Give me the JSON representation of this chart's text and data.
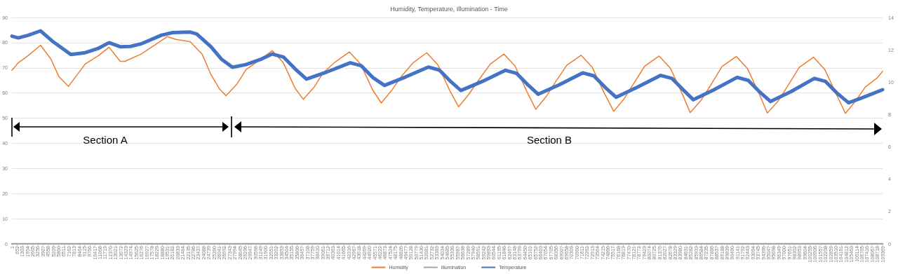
{
  "chart_data": {
    "type": "line",
    "title": "Humidity, Temperature, Illumination - Time",
    "annotations": [
      "Section A",
      "Section B"
    ],
    "xlim": [
      1,
      109369
    ],
    "xticks": [
      1,
      652,
      1303,
      1954,
      2605,
      3256,
      3907,
      4558,
      5209,
      5860,
      6511,
      7162,
      7813,
      8464,
      9115,
      9766,
      10417,
      11068,
      11719,
      12370,
      13021,
      13672,
      14323,
      14974,
      15625,
      16276,
      16927,
      17578,
      18229,
      18880,
      19531,
      20182,
      20833,
      21484,
      22135,
      22786,
      23437,
      24088,
      24739,
      25390,
      26041,
      26692,
      27343,
      27994,
      28645,
      29296,
      29947,
      30598,
      31249,
      31900,
      32551,
      33202,
      33853,
      34504,
      35155,
      35806,
      36457,
      37108,
      37759,
      38410,
      39061,
      39712,
      40363,
      41014,
      41665,
      42316,
      42967,
      43618,
      44269,
      44920,
      45571,
      46222,
      46873,
      47524,
      48175,
      48826,
      49477,
      50128,
      50779,
      51430,
      52081,
      52732,
      53383,
      54034,
      54685,
      55336,
      55987,
      56638,
      57289,
      57940,
      58591,
      59242,
      59893,
      60544,
      61195,
      61846,
      62497,
      63148,
      63799,
      64450,
      65101,
      65752,
      66403,
      67054,
      67705,
      68356,
      69007,
      69658,
      70309,
      70960,
      71611,
      72262,
      72913,
      73564,
      74215,
      74866,
      75517,
      76168,
      76819,
      77470,
      78121,
      78772,
      79423,
      80074,
      80725,
      81376,
      82027,
      82678,
      83329,
      83980,
      84631,
      85282,
      85933,
      86584,
      87235,
      87886,
      88537,
      89188,
      89839,
      90490,
      91141,
      91792,
      92443,
      93094,
      93745,
      94396,
      95047,
      95698,
      96349,
      97000,
      97651,
      98302,
      98953,
      99604,
      100255,
      100906,
      101557,
      102208,
      102859,
      103510,
      104161,
      104812,
      105463,
      106114,
      106765,
      107416,
      108067,
      108718,
      109369
    ],
    "ylim": [
      0,
      90
    ],
    "yticks": [
      0,
      10,
      20,
      30,
      40,
      50,
      60,
      70,
      80,
      90
    ],
    "y2lim": [
      0,
      14
    ],
    "y2ticks": [
      0,
      2,
      4,
      6,
      8,
      10,
      12,
      14
    ],
    "grid": "y",
    "legend": "bottom",
    "series": [
      {
        "name": "Humidity",
        "color": "#ed7d31",
        "x": [
          1,
          800,
          2100,
          3600,
          4900,
          5900,
          7100,
          9200,
          10900,
          12200,
          13600,
          14200,
          16200,
          17300,
          19500,
          20600,
          22400,
          23900,
          25000,
          26100,
          26900,
          28300,
          29400,
          30900,
          32700,
          34100,
          35600,
          36600,
          38000,
          39100,
          40600,
          42400,
          43800,
          45300,
          46400,
          47700,
          48900,
          50400,
          52100,
          53500,
          55000,
          56100,
          57400,
          58600,
          60100,
          61800,
          63200,
          64700,
          65800,
          67100,
          68200,
          69700,
          71500,
          72900,
          74400,
          75600,
          76900,
          78000,
          79500,
          81300,
          82700,
          84200,
          85200,
          86600,
          87700,
          89200,
          91000,
          92400,
          93900,
          94900,
          96300,
          97400,
          98900,
          100700,
          102100,
          103600,
          104700,
          106000,
          107200,
          108700,
          109369
        ],
        "values": [
          69,
          72,
          75,
          79,
          73.5,
          66.5,
          62.6,
          71.5,
          74.9,
          78.2,
          72.6,
          72.6,
          75.4,
          77.7,
          82.4,
          81.3,
          80.4,
          75.4,
          67.3,
          61.5,
          58.9,
          63.7,
          69.3,
          72.6,
          76.8,
          72,
          61.7,
          57.5,
          62.5,
          68,
          72.3,
          76.3,
          71.5,
          61.3,
          56,
          61,
          66.5,
          72,
          76,
          71.2,
          61,
          54.5,
          59.5,
          65,
          71.5,
          75.5,
          70.7,
          60.5,
          53.5,
          58.5,
          64,
          71,
          75,
          70.2,
          60,
          52.7,
          57.7,
          63.2,
          70.7,
          74.7,
          69.9,
          59.7,
          52.2,
          57.2,
          62.7,
          70.5,
          74.5,
          69.7,
          59.5,
          52,
          57,
          62.5,
          70.2,
          74.2,
          69.4,
          59.2,
          51.9,
          56.9,
          62.4,
          66,
          68.6
        ]
      },
      {
        "name": "Illumination",
        "color": "#a5a5a5",
        "x": [
          1,
          109369
        ],
        "values": [
          0,
          0
        ]
      },
      {
        "name": "Temperature",
        "color": "#4472c4",
        "x": [
          1,
          800,
          2100,
          3600,
          5200,
          7400,
          9200,
          10900,
          12200,
          13600,
          14900,
          16200,
          18800,
          20200,
          22400,
          23200,
          25000,
          26300,
          27700,
          29400,
          31200,
          32700,
          34100,
          35600,
          37000,
          39600,
          42500,
          43900,
          45400,
          46800,
          49400,
          52300,
          53700,
          55200,
          56400,
          59100,
          62000,
          63400,
          64900,
          66100,
          68800,
          71700,
          73100,
          74600,
          75900,
          78500,
          81500,
          82900,
          84400,
          85600,
          88200,
          91100,
          92500,
          94000,
          95300,
          97900,
          100800,
          102200,
          103700,
          105100,
          106900,
          109369
        ],
        "values": [
          82.6,
          81.9,
          83,
          84.7,
          80.3,
          75.3,
          76,
          77.8,
          80,
          78.4,
          78.5,
          79.5,
          83,
          84,
          84.2,
          83.5,
          78.4,
          73.5,
          70.2,
          71.3,
          73.3,
          75.5,
          74.3,
          69.5,
          65.5,
          68.4,
          72,
          70.8,
          66,
          63,
          66.3,
          70.3,
          69.1,
          64.3,
          61,
          64.6,
          69,
          67.8,
          63,
          59.5,
          63.3,
          68,
          66.8,
          62,
          58.3,
          62.2,
          67,
          65.8,
          61,
          57.3,
          61.3,
          66.2,
          65,
          60.2,
          56.6,
          60.6,
          65.8,
          64.6,
          59.8,
          56.1,
          58.2,
          61.3
        ]
      }
    ]
  }
}
